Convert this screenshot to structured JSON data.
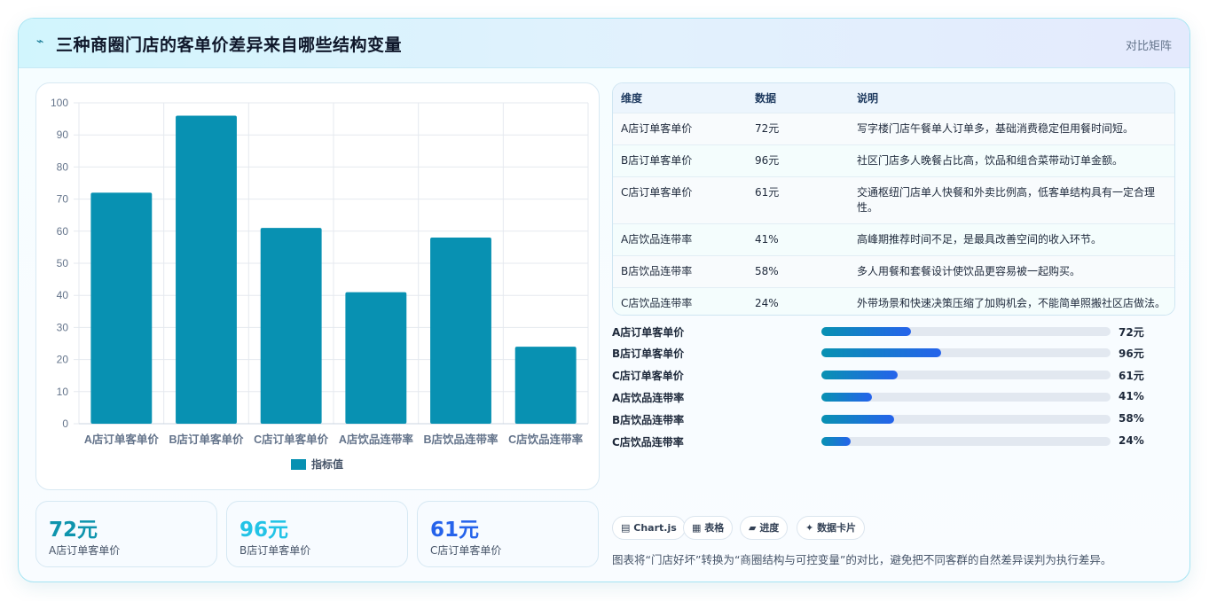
{
  "header": {
    "icon": "lightning-icon",
    "title": "三种商圈门店的客单价差异来自哪些结构变量",
    "tag": "对比矩阵"
  },
  "chart_data": {
    "type": "bar",
    "categories": [
      "A店订单客单价",
      "B店订单客单价",
      "C店订单客单价",
      "A店饮品连带率",
      "B店饮品连带率",
      "C店饮品连带率"
    ],
    "series": [
      {
        "name": "指标值",
        "values": [
          72,
          96,
          61,
          41,
          58,
          24
        ],
        "color": "#0891b2"
      }
    ],
    "ylim": [
      0,
      100
    ],
    "yticks": [
      "0",
      "10",
      "20",
      "30",
      "40",
      "50",
      "60",
      "70",
      "80",
      "90",
      "100"
    ],
    "legend": "bottom",
    "grid": true
  },
  "stats": [
    {
      "value": "72元",
      "label": "A店订单客单价",
      "color": "#0e94ad"
    },
    {
      "value": "96元",
      "label": "B店订单客单价",
      "color": "#22c3e6"
    },
    {
      "value": "61元",
      "label": "C店订单客单价",
      "color": "#2563eb"
    }
  ],
  "table": {
    "headers": [
      "维度",
      "数据",
      "说明"
    ],
    "rows": [
      [
        "A店订单客单价",
        "72元",
        "写字楼门店午餐单人订单多，基础消费稳定但用餐时间短。"
      ],
      [
        "B店订单客单价",
        "96元",
        "社区门店多人晚餐占比高，饮品和组合菜带动订单金额。"
      ],
      [
        "C店订单客单价",
        "61元",
        "交通枢纽门店单人快餐和外卖比例高，低客单结构具有一定合理性。"
      ],
      [
        "A店饮品连带率",
        "41%",
        "高峰期推荐时间不足，是最具改善空间的收入环节。"
      ],
      [
        "B店饮品连带率",
        "58%",
        "多人用餐和套餐设计使饮品更容易被一起购买。"
      ],
      [
        "C店饮品连带率",
        "24%",
        "外带场景和快速决策压缩了加购机会，不能简单照搬社区店做法。"
      ]
    ]
  },
  "progress": [
    {
      "label": "A店订单客单价",
      "value": "72元",
      "fraction": 0.31
    },
    {
      "label": "B店订单客单价",
      "value": "96元",
      "fraction": 0.415
    },
    {
      "label": "C店订单客单价",
      "value": "61元",
      "fraction": 0.265
    },
    {
      "label": "A店饮品连带率",
      "value": "41%",
      "fraction": 0.175
    },
    {
      "label": "B店饮品连带率",
      "value": "58%",
      "fraction": 0.25
    },
    {
      "label": "C店饮品连带率",
      "value": "24%",
      "fraction": 0.1
    }
  ],
  "chips": [
    {
      "icon": "chart-icon",
      "glyph": "▤",
      "label": "Chart.js"
    },
    {
      "icon": "table-icon",
      "glyph": "▦",
      "label": "表格"
    },
    {
      "icon": "progress-icon",
      "glyph": "▰",
      "label": "进度"
    },
    {
      "icon": "card-icon",
      "glyph": "✦",
      "label": "数据卡片"
    }
  ],
  "footnote": "图表将“门店好坏”转换为“商圈结构与可控变量”的对比，避免把不同客群的自然差异误判为执行差异。"
}
